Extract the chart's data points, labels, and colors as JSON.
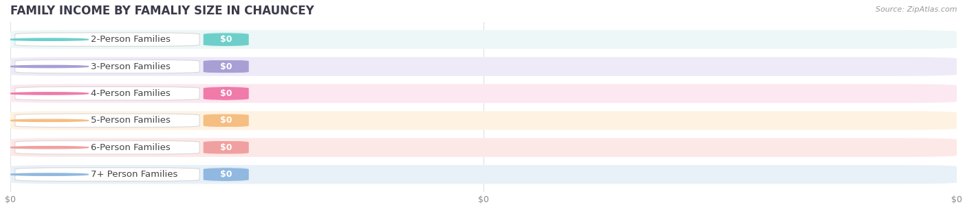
{
  "title": "FAMILY INCOME BY FAMALIY SIZE IN CHAUNCEY",
  "source": "Source: ZipAtlas.com",
  "categories": [
    "2-Person Families",
    "3-Person Families",
    "4-Person Families",
    "5-Person Families",
    "6-Person Families",
    "7+ Person Families"
  ],
  "values": [
    0,
    0,
    0,
    0,
    0,
    0
  ],
  "bar_colors": [
    "#6ecfca",
    "#a89fd4",
    "#f07aaa",
    "#f5be82",
    "#f0a0a0",
    "#90b8e0"
  ],
  "bar_bg_colors": [
    "#edf7f7",
    "#eeeaf8",
    "#fce8f0",
    "#fef3e3",
    "#fde8e8",
    "#e8f0f8"
  ],
  "bg_color": "#ffffff",
  "title_color": "#3a3a4a",
  "label_color": "#444444",
  "source_color": "#999999",
  "xtick_color": "#888888",
  "grid_color": "#e0e0e0",
  "title_fontsize": 12,
  "label_fontsize": 9.5,
  "value_fontsize": 9,
  "source_fontsize": 8,
  "xtick_fontsize": 9
}
